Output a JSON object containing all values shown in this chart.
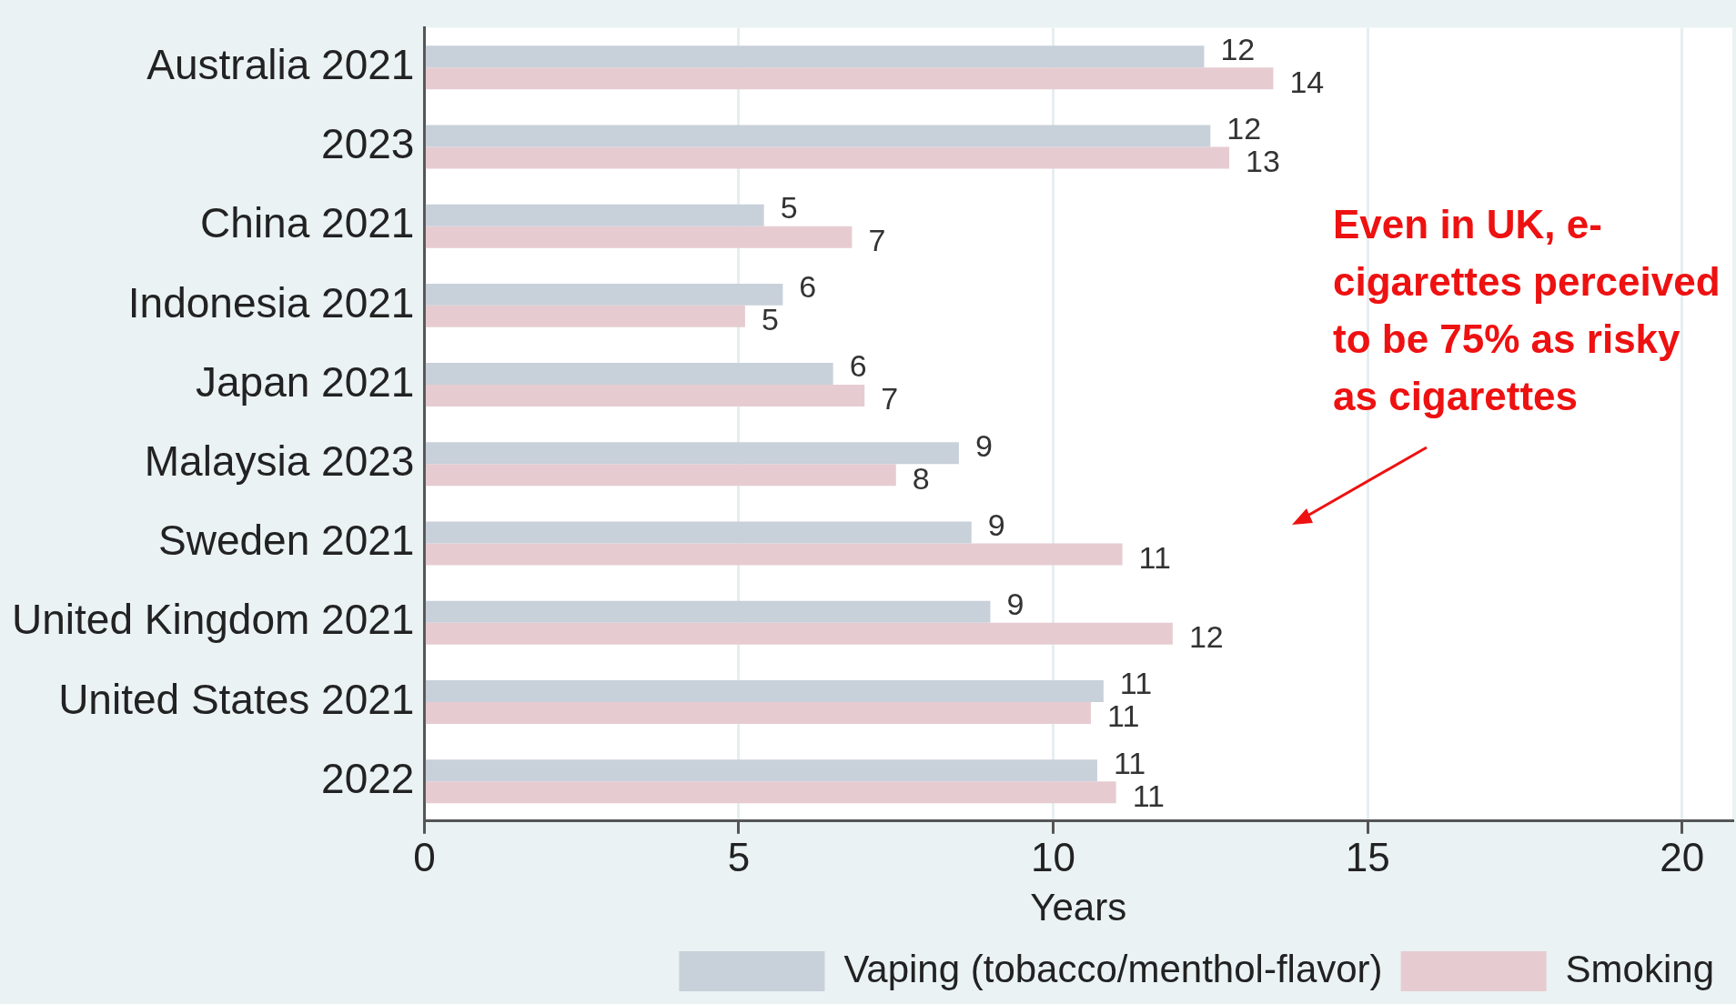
{
  "chart_data": {
    "type": "bar",
    "orientation": "horizontal",
    "categories": [
      "Australia 2021",
      "2023",
      "China 2021",
      "Indonesia 2021",
      "Japan 2021",
      "Malaysia 2023",
      "Sweden 2021",
      "United Kingdom 2021",
      "United States 2021",
      "2022"
    ],
    "series": [
      {
        "name": "Vaping (tobacco/menthol-flavor)",
        "color": "#c8d0da",
        "values": [
          12.4,
          12.5,
          5.4,
          5.7,
          6.5,
          8.5,
          8.7,
          9.0,
          10.8,
          10.7
        ],
        "value_labels": [
          "12",
          "12",
          "5",
          "6",
          "6",
          "9",
          "9",
          "9",
          "11",
          "11"
        ]
      },
      {
        "name": "Smoking",
        "color": "#e6ccd1",
        "values": [
          13.5,
          12.8,
          6.8,
          5.1,
          7.0,
          7.5,
          11.1,
          11.9,
          10.6,
          11.0
        ],
        "value_labels": [
          "14",
          "13",
          "7",
          "5",
          "7",
          "8",
          "11",
          "12",
          "11",
          "11"
        ]
      }
    ],
    "xlabel": "Years",
    "xlim": [
      0,
      20.8
    ],
    "xticks": [
      0,
      5,
      10,
      15,
      20
    ],
    "grid": "x",
    "legend": "bottom",
    "annotations": [
      "Even in UK, e-cigarettes perceived to be 75% as risky as cigarettes"
    ]
  }
}
